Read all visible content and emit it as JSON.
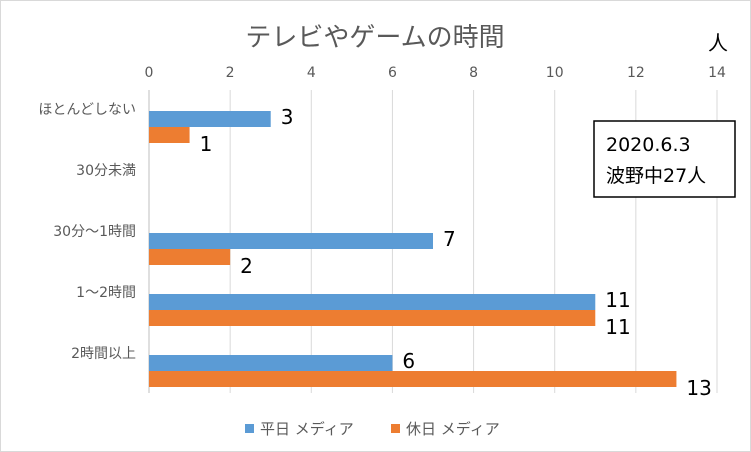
{
  "chart_data": {
    "type": "bar",
    "orientation": "horizontal",
    "title": "テレビやゲームの時間",
    "unit_label": "人",
    "categories": [
      "ほとんどしない",
      "30分未満",
      "30分〜1時間",
      "1〜2時間",
      "2時間以上"
    ],
    "series": [
      {
        "name": "平日 メディア",
        "values": [
          3,
          0,
          7,
          11,
          6
        ],
        "color": "#5b9bd5"
      },
      {
        "name": "休日 メディア",
        "values": [
          1,
          0,
          2,
          11,
          13
        ],
        "color": "#ed7d31"
      }
    ],
    "data_labels": [
      [
        "3",
        "",
        "7",
        "11",
        "6"
      ],
      [
        "1",
        "",
        "2",
        "11",
        "13"
      ]
    ],
    "xlim": [
      0,
      14
    ],
    "x_ticks": [
      "0",
      "2",
      "4",
      "6",
      "8",
      "10",
      "12",
      "14"
    ],
    "grid": true,
    "legend_position": "bottom",
    "annotation": {
      "line1": "2020.6.3",
      "line2": "波野中27人"
    }
  }
}
